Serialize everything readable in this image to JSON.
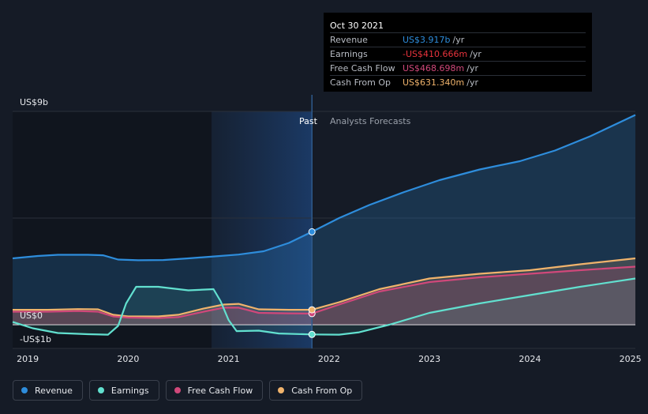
{
  "colors": {
    "revenue": "#2e8ddc",
    "earnings": "#62e0cf",
    "free_cash_flow": "#d0487a",
    "cash_from_op": "#f0b36c",
    "background": "#151b26"
  },
  "tooltip": {
    "date": "Oct 30 2021",
    "rows": [
      {
        "label": "Revenue",
        "value": "US$3.917b",
        "unit": "/yr",
        "color": "#2e8ddc"
      },
      {
        "label": "Earnings",
        "value": "-US$410.666m",
        "unit": "/yr",
        "color": "#e8333c"
      },
      {
        "label": "Free Cash Flow",
        "value": "US$468.698m",
        "unit": "/yr",
        "color": "#d0487a"
      },
      {
        "label": "Cash From Op",
        "value": "US$631.340m",
        "unit": "/yr",
        "color": "#f0b36c"
      }
    ]
  },
  "regions": {
    "past": "Past",
    "forecast": "Analysts Forecasts"
  },
  "legend": [
    {
      "label": "Revenue",
      "icon": "revenue-dot",
      "color": "#2e8ddc"
    },
    {
      "label": "Earnings",
      "icon": "earnings-dot",
      "color": "#62e0cf"
    },
    {
      "label": "Free Cash Flow",
      "icon": "free-cash-flow-dot",
      "color": "#d0487a"
    },
    {
      "label": "Cash From Op",
      "icon": "cash-from-op-dot",
      "color": "#f0b36c"
    }
  ],
  "chart_data": {
    "type": "area",
    "y_tick_labels": [
      "US$9b",
      "US$0",
      "-US$1b"
    ],
    "ylim": [
      -1,
      9
    ],
    "xlim": [
      2018.85,
      2025.05
    ],
    "x_tick_labels": [
      "2019",
      "2020",
      "2021",
      "2022",
      "2023",
      "2024",
      "2025"
    ],
    "x_ticks": [
      2019,
      2020,
      2021,
      2022,
      2023,
      2024,
      2025
    ],
    "grid": true,
    "divider_x": 2021.83,
    "series": [
      {
        "name": "Revenue",
        "x": [
          2018.85,
          2019.1,
          2019.3,
          2019.6,
          2019.75,
          2019.9,
          2020.1,
          2020.35,
          2020.6,
          2020.85,
          2021.1,
          2021.35,
          2021.6,
          2021.83,
          2022.1,
          2022.4,
          2022.75,
          2023.1,
          2023.5,
          2023.9,
          2024.25,
          2024.6,
          2025.05
        ],
        "y": [
          2.8,
          2.9,
          2.95,
          2.95,
          2.93,
          2.75,
          2.72,
          2.73,
          2.8,
          2.88,
          2.96,
          3.1,
          3.45,
          3.92,
          4.5,
          5.05,
          5.6,
          6.1,
          6.55,
          6.9,
          7.35,
          7.95,
          8.85
        ]
      },
      {
        "name": "Earnings",
        "x": [
          2018.85,
          2019.05,
          2019.3,
          2019.6,
          2019.8,
          2019.9,
          2019.98,
          2020.08,
          2020.3,
          2020.6,
          2020.85,
          2020.92,
          2021.0,
          2021.08,
          2021.3,
          2021.5,
          2021.83,
          2022.1,
          2022.3,
          2022.6,
          2023.0,
          2023.5,
          2024.0,
          2024.5,
          2025.05
        ],
        "y": [
          0.12,
          -0.15,
          -0.35,
          -0.4,
          -0.42,
          -0.05,
          0.9,
          1.6,
          1.6,
          1.45,
          1.5,
          1.0,
          0.2,
          -0.27,
          -0.25,
          -0.37,
          -0.41,
          -0.42,
          -0.32,
          0.0,
          0.5,
          0.9,
          1.25,
          1.6,
          1.95
        ]
      },
      {
        "name": "Free Cash Flow",
        "x": [
          2018.85,
          2019.2,
          2019.5,
          2019.7,
          2019.85,
          2020.0,
          2020.3,
          2020.5,
          2020.75,
          2020.95,
          2021.1,
          2021.3,
          2021.6,
          2021.83,
          2022.1,
          2022.5,
          2023.0,
          2023.5,
          2024.0,
          2024.5,
          2025.05
        ],
        "y": [
          0.55,
          0.55,
          0.58,
          0.55,
          0.35,
          0.3,
          0.28,
          0.32,
          0.55,
          0.72,
          0.72,
          0.5,
          0.48,
          0.47,
          0.85,
          1.4,
          1.8,
          2.0,
          2.15,
          2.3,
          2.45
        ]
      },
      {
        "name": "Cash From Op",
        "x": [
          2018.85,
          2019.2,
          2019.5,
          2019.7,
          2019.85,
          2020.0,
          2020.3,
          2020.5,
          2020.75,
          2020.95,
          2021.1,
          2021.3,
          2021.6,
          2021.83,
          2022.1,
          2022.5,
          2023.0,
          2023.5,
          2024.0,
          2024.5,
          2025.05
        ],
        "y": [
          0.63,
          0.63,
          0.66,
          0.65,
          0.42,
          0.35,
          0.35,
          0.42,
          0.68,
          0.85,
          0.88,
          0.65,
          0.63,
          0.63,
          0.95,
          1.5,
          1.95,
          2.15,
          2.3,
          2.55,
          2.8
        ]
      }
    ],
    "highlight_points": [
      {
        "series": "Revenue",
        "x": 2021.83,
        "y": 3.92
      },
      {
        "series": "Earnings",
        "x": 2021.83,
        "y": -0.41
      },
      {
        "series": "Free Cash Flow",
        "x": 2021.83,
        "y": 0.47
      },
      {
        "series": "Cash From Op",
        "x": 2021.83,
        "y": 0.63
      }
    ]
  }
}
